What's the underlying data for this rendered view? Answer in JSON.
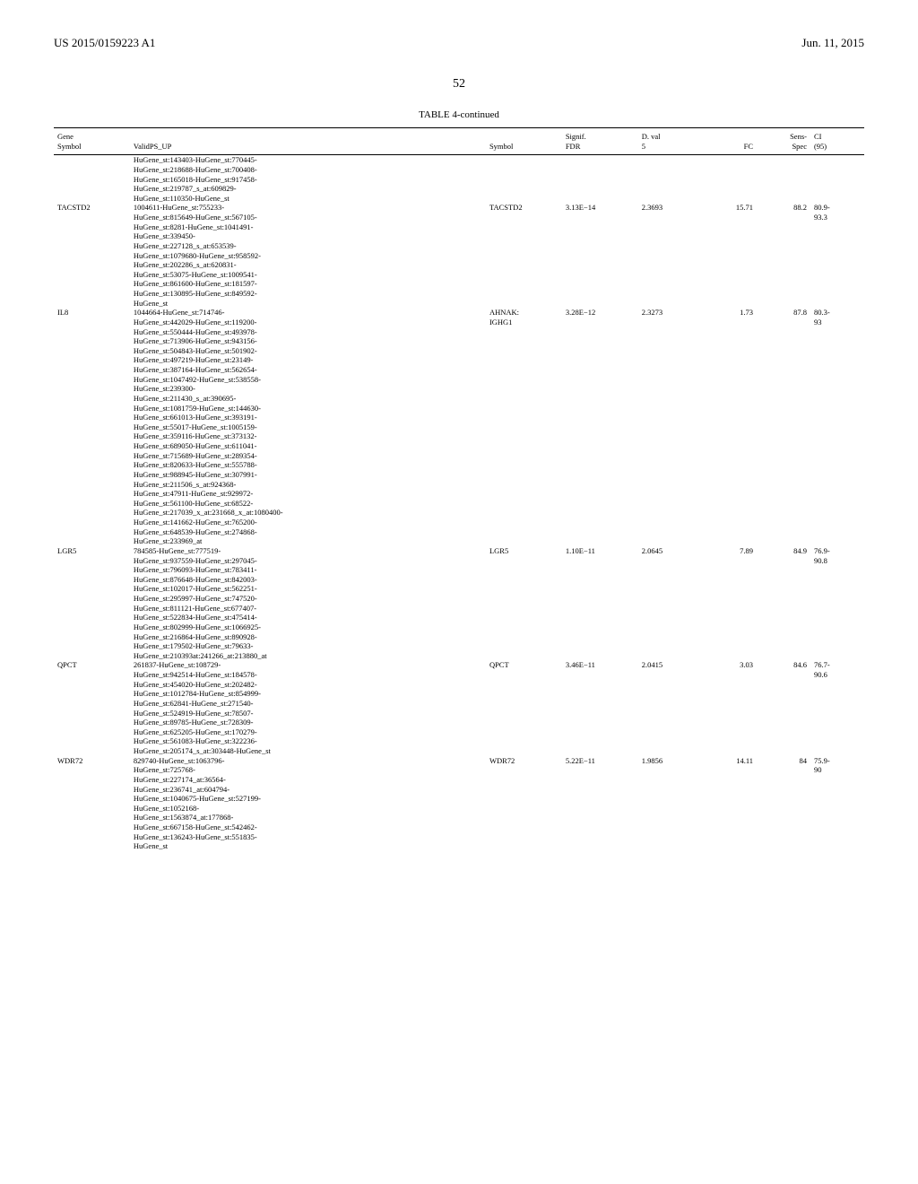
{
  "header": {
    "left": "US 2015/0159223 A1",
    "right": "Jun. 11, 2015"
  },
  "page_number": "52",
  "table_title": "TABLE 4-continued",
  "columns": {
    "gene_symbol": "Gene\nSymbol",
    "valid_ps": "ValidPS_UP",
    "symbol": "Symbol",
    "signif": "Signif.\nFDR",
    "dval": "D. val\n5",
    "fc": "FC",
    "sens": "Sens-\nSpec",
    "ci": "CI\n(95)"
  },
  "rows": [
    {
      "gene": "",
      "valid": "HuGene_st:143403-HuGene_st:770445-HuGene_st:218688-HuGene_st:700408-HuGene_st:165018-HuGene_st:917458-HuGene_st:219787_s_at:609829-HuGene_st:110350-HuGene_st",
      "symbol": "",
      "signif": "",
      "dval": "",
      "fc": "",
      "sens": "",
      "ci": ""
    },
    {
      "gene": "TACSTD2",
      "valid": "1004611-HuGene_st:755233-HuGene_st:815649-HuGene_st:567105-HuGene_st:8281-HuGene_st:1041491-HuGene_st:339450-HuGene_st:227128_s_at:653539-HuGene_st:1079680-HuGene_st:958592-HuGene_st:202286_s_at:620831-HuGene_st:53075-HuGene_st:1009541-HuGene_st:861600-HuGene_st:181597-HuGene_st:130895-HuGene_st:849592-HuGene_st",
      "symbol": "TACSTD2",
      "signif": "3.13E−14",
      "dval": "2.3693",
      "fc": "15.71",
      "sens": "88.2",
      "ci": "80.9-93.3"
    },
    {
      "gene": "IL8",
      "valid": "1044664-HuGene_st:714746-HuGene_st:442029-HuGene_st:119200-HuGene_st:550444-HuGene_st:493978-HuGene_st:713906-HuGene_st:943156-HuGene_st:504843-HuGene_st:501902-HuGene_st:497219-HuGene_st:23149-HuGene_st:387164-HuGene_st:562654-HuGene_st:1047492-HuGene_st:538558-HuGene_st:239300-HuGene_st:211430_s_at:390695-HuGene_st:1081759-HuGene_st:144630-HuGene_st:661013-HuGene_st:393191-HuGene_st:55017-HuGene_st:1005159-HuGene_st:359116-HuGene_st:373132-HuGene_st:689050-HuGene_st:611041-HuGene_st:715689-HuGene_st:289354-HuGene_st:820633-HuGene_st:555788-HuGene_st:988945-HuGene_st:307991-HuGene_st:211506_s_at:924368-HuGene_st:47911-HuGene_st:929972-HuGene_st:561100-HuGene_st:68522-HuGene_st:217039_x_at:231668_x_at:1080400-HuGene_st:141662-HuGene_st:765200-HuGene_st:648539-HuGene_st:274868-HuGene_st:233969_at",
      "symbol": "AHNAK: IGHG1",
      "signif": "3.28E−12",
      "dval": "2.3273",
      "fc": "1.73",
      "sens": "87.8",
      "ci": "80.3-93"
    },
    {
      "gene": "LGR5",
      "valid": "784585-HuGene_st:777519-HuGene_st:937559-HuGene_st:297045-HuGene_st:796093-HuGene_st:783411-HuGene_st:876648-HuGene_st:842003-HuGene_st:102017-HuGene_st:562251-HuGene_st:295997-HuGene_st:747520-HuGene_st:811121-HuGene_st:677407-HuGene_st:522834-HuGene_st:475414-HuGene_st:802999-HuGene_st:1066925-HuGene_st:216864-HuGene_st:890928-HuGene_st:179502-HuGene_st:79633-HuGene_st:210393at:241266_at:213880_at",
      "symbol": "LGR5",
      "signif": "1.10E−11",
      "dval": "2.0645",
      "fc": "7.89",
      "sens": "84.9",
      "ci": "76.9-90.8"
    },
    {
      "gene": "QPCT",
      "valid": "261837-HuGene_st:108729-HuGene_st:942514-HuGene_st:184578-HuGene_st:454020-HuGene_st:202482-HuGene_st:1012784-HuGene_st:854999-HuGene_st:62841-HuGene_st:271540-HuGene_st:524919-HuGene_st:78507-HuGene_st:89785-HuGene_st:728309-HuGene_st:625205-HuGene_st:170279-HuGene_st:561083-HuGene_st:322236-HuGene_st:205174_s_at:303448-HuGene_st",
      "symbol": "QPCT",
      "signif": "3.46E−11",
      "dval": "2.0415",
      "fc": "3.03",
      "sens": "84.6",
      "ci": "76.7-90.6"
    },
    {
      "gene": "WDR72",
      "valid": "829740-HuGene_st:1063796-HuGene_st:725768-HuGene_st:227174_at:36564-HuGene_st:236741_at:604794-HuGene_st:1040675-HuGene_st:527199-HuGene_st:1052168-HuGene_st:1563874_at:177868-HuGene_st:667158-HuGene_st:542462-HuGene_st:136243-HuGene_st:551835-HuGene_st",
      "symbol": "WDR72",
      "signif": "5.22E−11",
      "dval": "1.9856",
      "fc": "14.11",
      "sens": "84",
      "ci": "75.9-90"
    }
  ]
}
